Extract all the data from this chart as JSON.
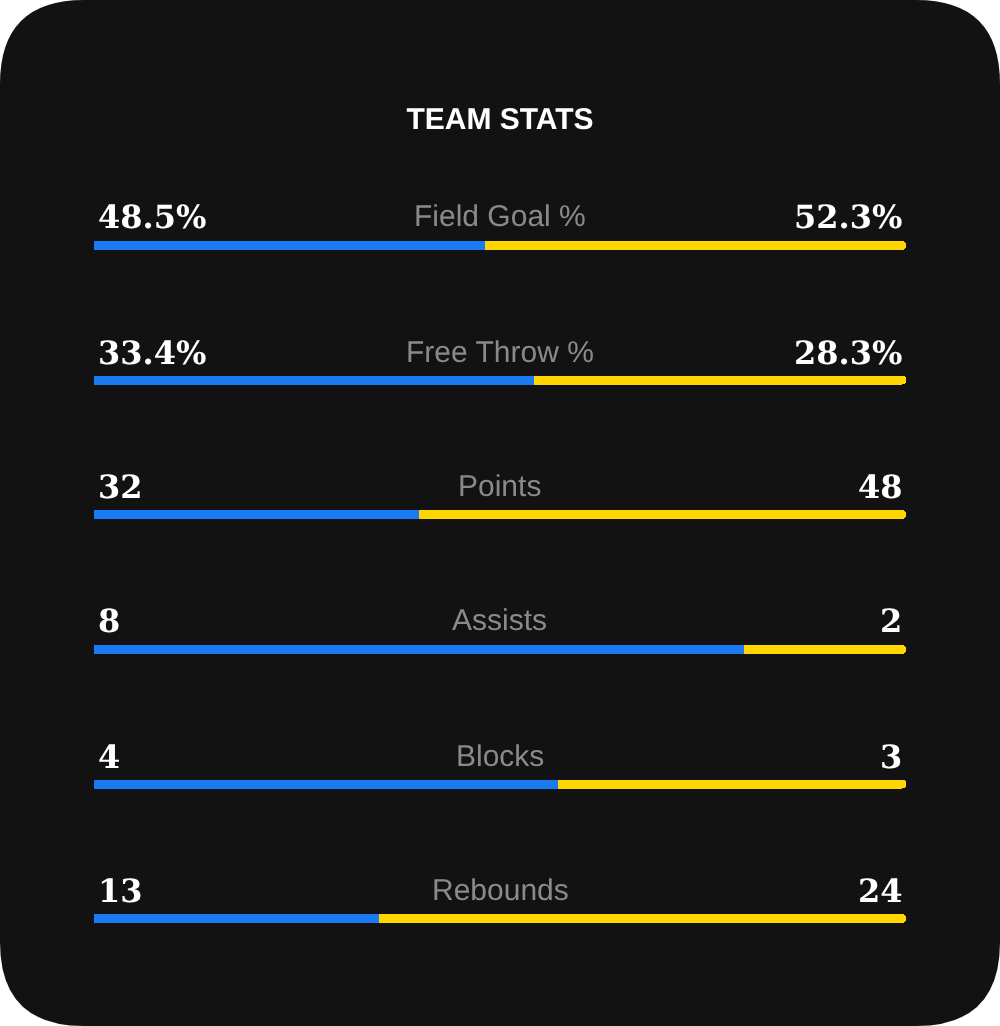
{
  "chart_data": [
    {
      "type": "bar",
      "orientation": "horizontal",
      "stacked": true,
      "title": "TEAM STATS",
      "categories": [
        "Field Goal %"
      ],
      "tick_labels": "y",
      "series": [
        {
          "color": "#1a7af2",
          "values": [
            48.5
          ],
          "value_labels": [
            "48.5%"
          ]
        },
        {
          "color": "#ffd600",
          "values": [
            52.3
          ],
          "value_labels": [
            "52.3%"
          ]
        }
      ]
    },
    {
      "type": "bar",
      "orientation": "horizontal",
      "stacked": true,
      "categories": [
        "Free Throw %"
      ],
      "tick_labels": "y",
      "series": [
        {
          "color": "#1a7af2",
          "values": [
            33.4
          ],
          "value_labels": [
            "33.4%"
          ]
        },
        {
          "color": "#ffd600",
          "values": [
            28.3
          ],
          "value_labels": [
            "28.3%"
          ]
        }
      ]
    },
    {
      "type": "bar",
      "orientation": "horizontal",
      "stacked": true,
      "categories": [
        "Points"
      ],
      "tick_labels": "y",
      "series": [
        {
          "color": "#1a7af2",
          "values": [
            32
          ],
          "value_labels": [
            "32"
          ]
        },
        {
          "color": "#ffd600",
          "values": [
            48
          ],
          "value_labels": [
            "48"
          ]
        }
      ]
    },
    {
      "type": "bar",
      "orientation": "horizontal",
      "stacked": true,
      "categories": [
        "Assists"
      ],
      "tick_labels": "y",
      "series": [
        {
          "color": "#1a7af2",
          "values": [
            8
          ],
          "value_labels": [
            "8"
          ]
        },
        {
          "color": "#ffd600",
          "values": [
            2
          ],
          "value_labels": [
            "2"
          ]
        }
      ]
    },
    {
      "type": "bar",
      "orientation": "horizontal",
      "stacked": true,
      "categories": [
        "Blocks"
      ],
      "tick_labels": "y",
      "series": [
        {
          "color": "#1a7af2",
          "values": [
            4
          ],
          "value_labels": [
            "4"
          ]
        },
        {
          "color": "#ffd600",
          "values": [
            3
          ],
          "value_labels": [
            "3"
          ]
        }
      ]
    },
    {
      "type": "bar",
      "orientation": "horizontal",
      "stacked": true,
      "categories": [
        "Rebounds"
      ],
      "tick_labels": "y",
      "series": [
        {
          "color": "#1a7af2",
          "values": [
            13
          ],
          "value_labels": [
            "13"
          ]
        },
        {
          "color": "#ffd600",
          "values": [
            24
          ],
          "value_labels": [
            "24"
          ]
        }
      ]
    }
  ]
}
